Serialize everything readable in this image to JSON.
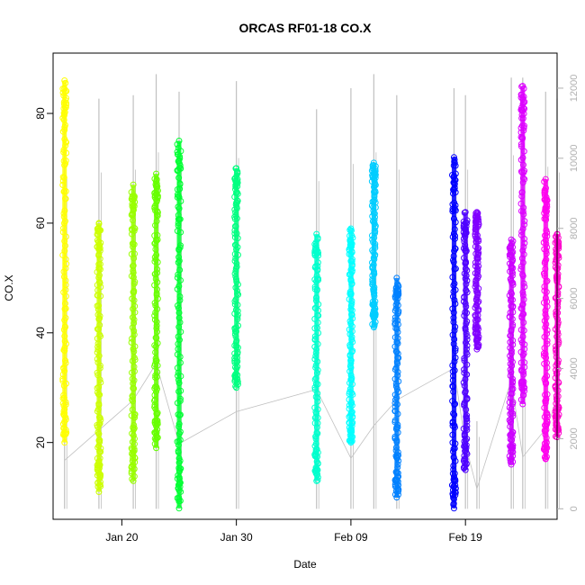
{
  "chart_data": {
    "type": "scatter",
    "title": "ORCAS RF01-18 CO.X",
    "xlabel": "Date",
    "ylabel": "CO.X",
    "x_axis": {
      "type": "date",
      "range": [
        "2016-01-14",
        "2016-02-27"
      ]
    },
    "ylim": [
      6,
      91
    ],
    "y_ticks": [
      20,
      40,
      60,
      80
    ],
    "x_ticks": [
      {
        "date": "2016-01-20",
        "label": "Jan 20"
      },
      {
        "date": "2016-01-30",
        "label": "Jan 30"
      },
      {
        "date": "2016-02-09",
        "label": "Feb 09"
      },
      {
        "date": "2016-02-19",
        "label": "Feb 19"
      }
    ],
    "secondary_axis": {
      "ticks": [
        0,
        2000,
        4000,
        6000,
        8000,
        10000,
        12000
      ],
      "range": [
        -300,
        13000
      ],
      "color": "#b0b0b0",
      "series_color": "#c0c0c0"
    },
    "grid": false,
    "legend": "none",
    "series": [
      {
        "date": "2016-01-15",
        "y_min": 20,
        "y_max": 86,
        "color": "#ffff00"
      },
      {
        "date": "2016-01-18",
        "y_min": 11,
        "y_max": 60,
        "color": "#ccff00"
      },
      {
        "date": "2016-01-21",
        "y_min": 13,
        "y_max": 67,
        "color": "#99ff00"
      },
      {
        "date": "2016-01-23",
        "y_min": 19,
        "y_max": 69,
        "color": "#66ff00"
      },
      {
        "date": "2016-01-25",
        "y_min": 8,
        "y_max": 75,
        "color": "#00ff33"
      },
      {
        "date": "2016-01-30",
        "y_min": 30,
        "y_max": 70,
        "color": "#00ff80"
      },
      {
        "date": "2016-02-06",
        "y_min": 13,
        "y_max": 58,
        "color": "#00ffcc"
      },
      {
        "date": "2016-02-09",
        "y_min": 20,
        "y_max": 59,
        "color": "#00ffff"
      },
      {
        "date": "2016-02-11",
        "y_min": 41,
        "y_max": 71,
        "color": "#00ccff"
      },
      {
        "date": "2016-02-13",
        "y_min": 10,
        "y_max": 50,
        "color": "#0080ff"
      },
      {
        "date": "2016-02-18",
        "y_min": 8,
        "y_max": 72,
        "color": "#0000ff"
      },
      {
        "date": "2016-02-19",
        "y_min": 15,
        "y_max": 62,
        "color": "#4d00ff"
      },
      {
        "date": "2016-02-20",
        "y_min": 37,
        "y_max": 62,
        "color": "#8000ff"
      },
      {
        "date": "2016-02-23",
        "y_min": 16,
        "y_max": 57,
        "color": "#cc00ff"
      },
      {
        "date": "2016-02-24",
        "y_min": 27,
        "y_max": 85,
        "color": "#dd00ff"
      },
      {
        "date": "2016-02-26",
        "y_min": 17,
        "y_max": 68,
        "color": "#ff00ee"
      },
      {
        "date": "2016-02-27",
        "y_min": 21,
        "y_max": 58,
        "color": "#ff00cc"
      }
    ],
    "secondary_series": [
      {
        "date": "2016-01-15",
        "y_min": 0,
        "y_max": 11500
      },
      {
        "date": "2016-01-18",
        "y_min": 0,
        "y_max": 11700
      },
      {
        "date": "2016-01-21",
        "y_min": 0,
        "y_max": 11800
      },
      {
        "date": "2016-01-23",
        "y_min": 0,
        "y_max": 12400
      },
      {
        "date": "2016-01-25",
        "y_min": 0,
        "y_max": 11900
      },
      {
        "date": "2016-01-30",
        "y_min": 0,
        "y_max": 12200
      },
      {
        "date": "2016-02-06",
        "y_min": 0,
        "y_max": 11400
      },
      {
        "date": "2016-02-09",
        "y_min": 0,
        "y_max": 12000
      },
      {
        "date": "2016-02-11",
        "y_min": 0,
        "y_max": 12400
      },
      {
        "date": "2016-02-13",
        "y_min": 0,
        "y_max": 11800
      },
      {
        "date": "2016-02-18",
        "y_min": 0,
        "y_max": 12000
      },
      {
        "date": "2016-02-19",
        "y_min": 0,
        "y_max": 11800
      },
      {
        "date": "2016-02-20",
        "y_min": 0,
        "y_max": 2500
      },
      {
        "date": "2016-02-23",
        "y_min": 0,
        "y_max": 12300
      },
      {
        "date": "2016-02-24",
        "y_min": 0,
        "y_max": 12300
      },
      {
        "date": "2016-02-26",
        "y_min": 0,
        "y_max": 11900
      },
      {
        "date": "2016-02-27",
        "y_min": 0,
        "y_max": 11700
      }
    ]
  }
}
